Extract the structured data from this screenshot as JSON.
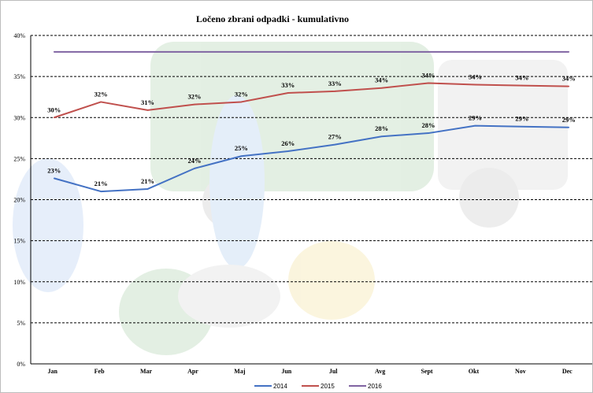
{
  "chart_data": {
    "type": "line",
    "title": "Ločeno zbrani odpadki - kumulativno",
    "categories": [
      "Jan",
      "Feb",
      "Mar",
      "Apr",
      "Maj",
      "Jun",
      "Jul",
      "Avg",
      "Sept",
      "Okt",
      "Nov",
      "Dec"
    ],
    "ylim": [
      0,
      40
    ],
    "yticks": [
      "0%",
      "5%",
      "10%",
      "15%",
      "20%",
      "25%",
      "30%",
      "35%",
      "40%"
    ],
    "grid": true,
    "legend_position": "bottom",
    "series": [
      {
        "name": "2014",
        "color": "#4472c4",
        "values": [
          22.6,
          21.0,
          21.3,
          23.8,
          25.3,
          25.9,
          26.7,
          27.7,
          28.1,
          29.0,
          28.9,
          28.8
        ],
        "labels": [
          "23%",
          "21%",
          "21%",
          "24%",
          "25%",
          "26%",
          "27%",
          "28%",
          "28%",
          "29%",
          "29%",
          "29%"
        ]
      },
      {
        "name": "2015",
        "color": "#c0504d",
        "values": [
          30.0,
          31.9,
          30.9,
          31.6,
          31.9,
          33.0,
          33.2,
          33.6,
          34.2,
          34.0,
          33.9,
          33.8
        ],
        "labels": [
          "30%",
          "32%",
          "31%",
          "32%",
          "32%",
          "33%",
          "33%",
          "34%",
          "34%",
          "34%",
          "34%",
          "34%"
        ]
      },
      {
        "name": "2016",
        "color": "#8064a2",
        "values": [
          38.0,
          38.0,
          38.0,
          38.0,
          38.0,
          38.0,
          38.0,
          38.0,
          38.0,
          38.0,
          38.0,
          38.0
        ],
        "labels": []
      }
    ]
  }
}
